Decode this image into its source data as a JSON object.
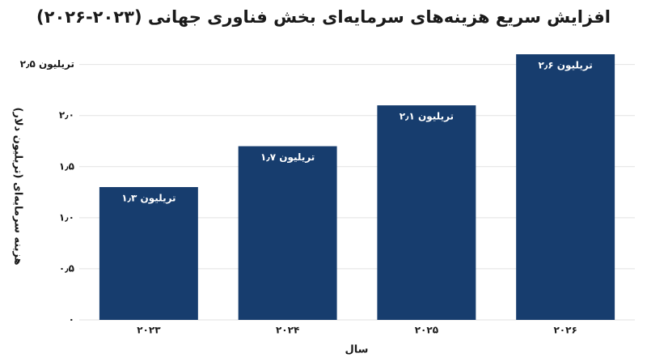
{
  "chart_data": {
    "type": "bar",
    "title": "افزایش سریع هزینه‌های سرمایه‌ای بخش فناوری جهانی (۲۰۲۳-۲۰۲۶)",
    "x_label": "سال",
    "y_label": "هزینه سرمایه‌ای (تریلیون دلار)",
    "categories": [
      "۲۰۲۳",
      "۲۰۲۴",
      "۲۰۲۵",
      "۲۰۲۶"
    ],
    "values": [
      1.3,
      1.7,
      2.1,
      2.6
    ],
    "value_labels": [
      "۱٫۳ تریلیون",
      "۱٫۷ تریلیون",
      "۲٫۱ تریلیون",
      "۲٫۶ تریلیون"
    ],
    "color": "#173d6e",
    "ylim": [
      0,
      2.6
    ],
    "yticks": [
      {
        "value": 0,
        "label": "۰"
      },
      {
        "value": 0.5,
        "label": "۰٫۵"
      },
      {
        "value": 1,
        "label": "۱٫۰"
      },
      {
        "value": 1.5,
        "label": "۱٫۵"
      },
      {
        "value": 2,
        "label": "۲٫۰"
      },
      {
        "value": 2.5,
        "label": "۲٫۵ تریلیون"
      }
    ],
    "grid": true
  }
}
